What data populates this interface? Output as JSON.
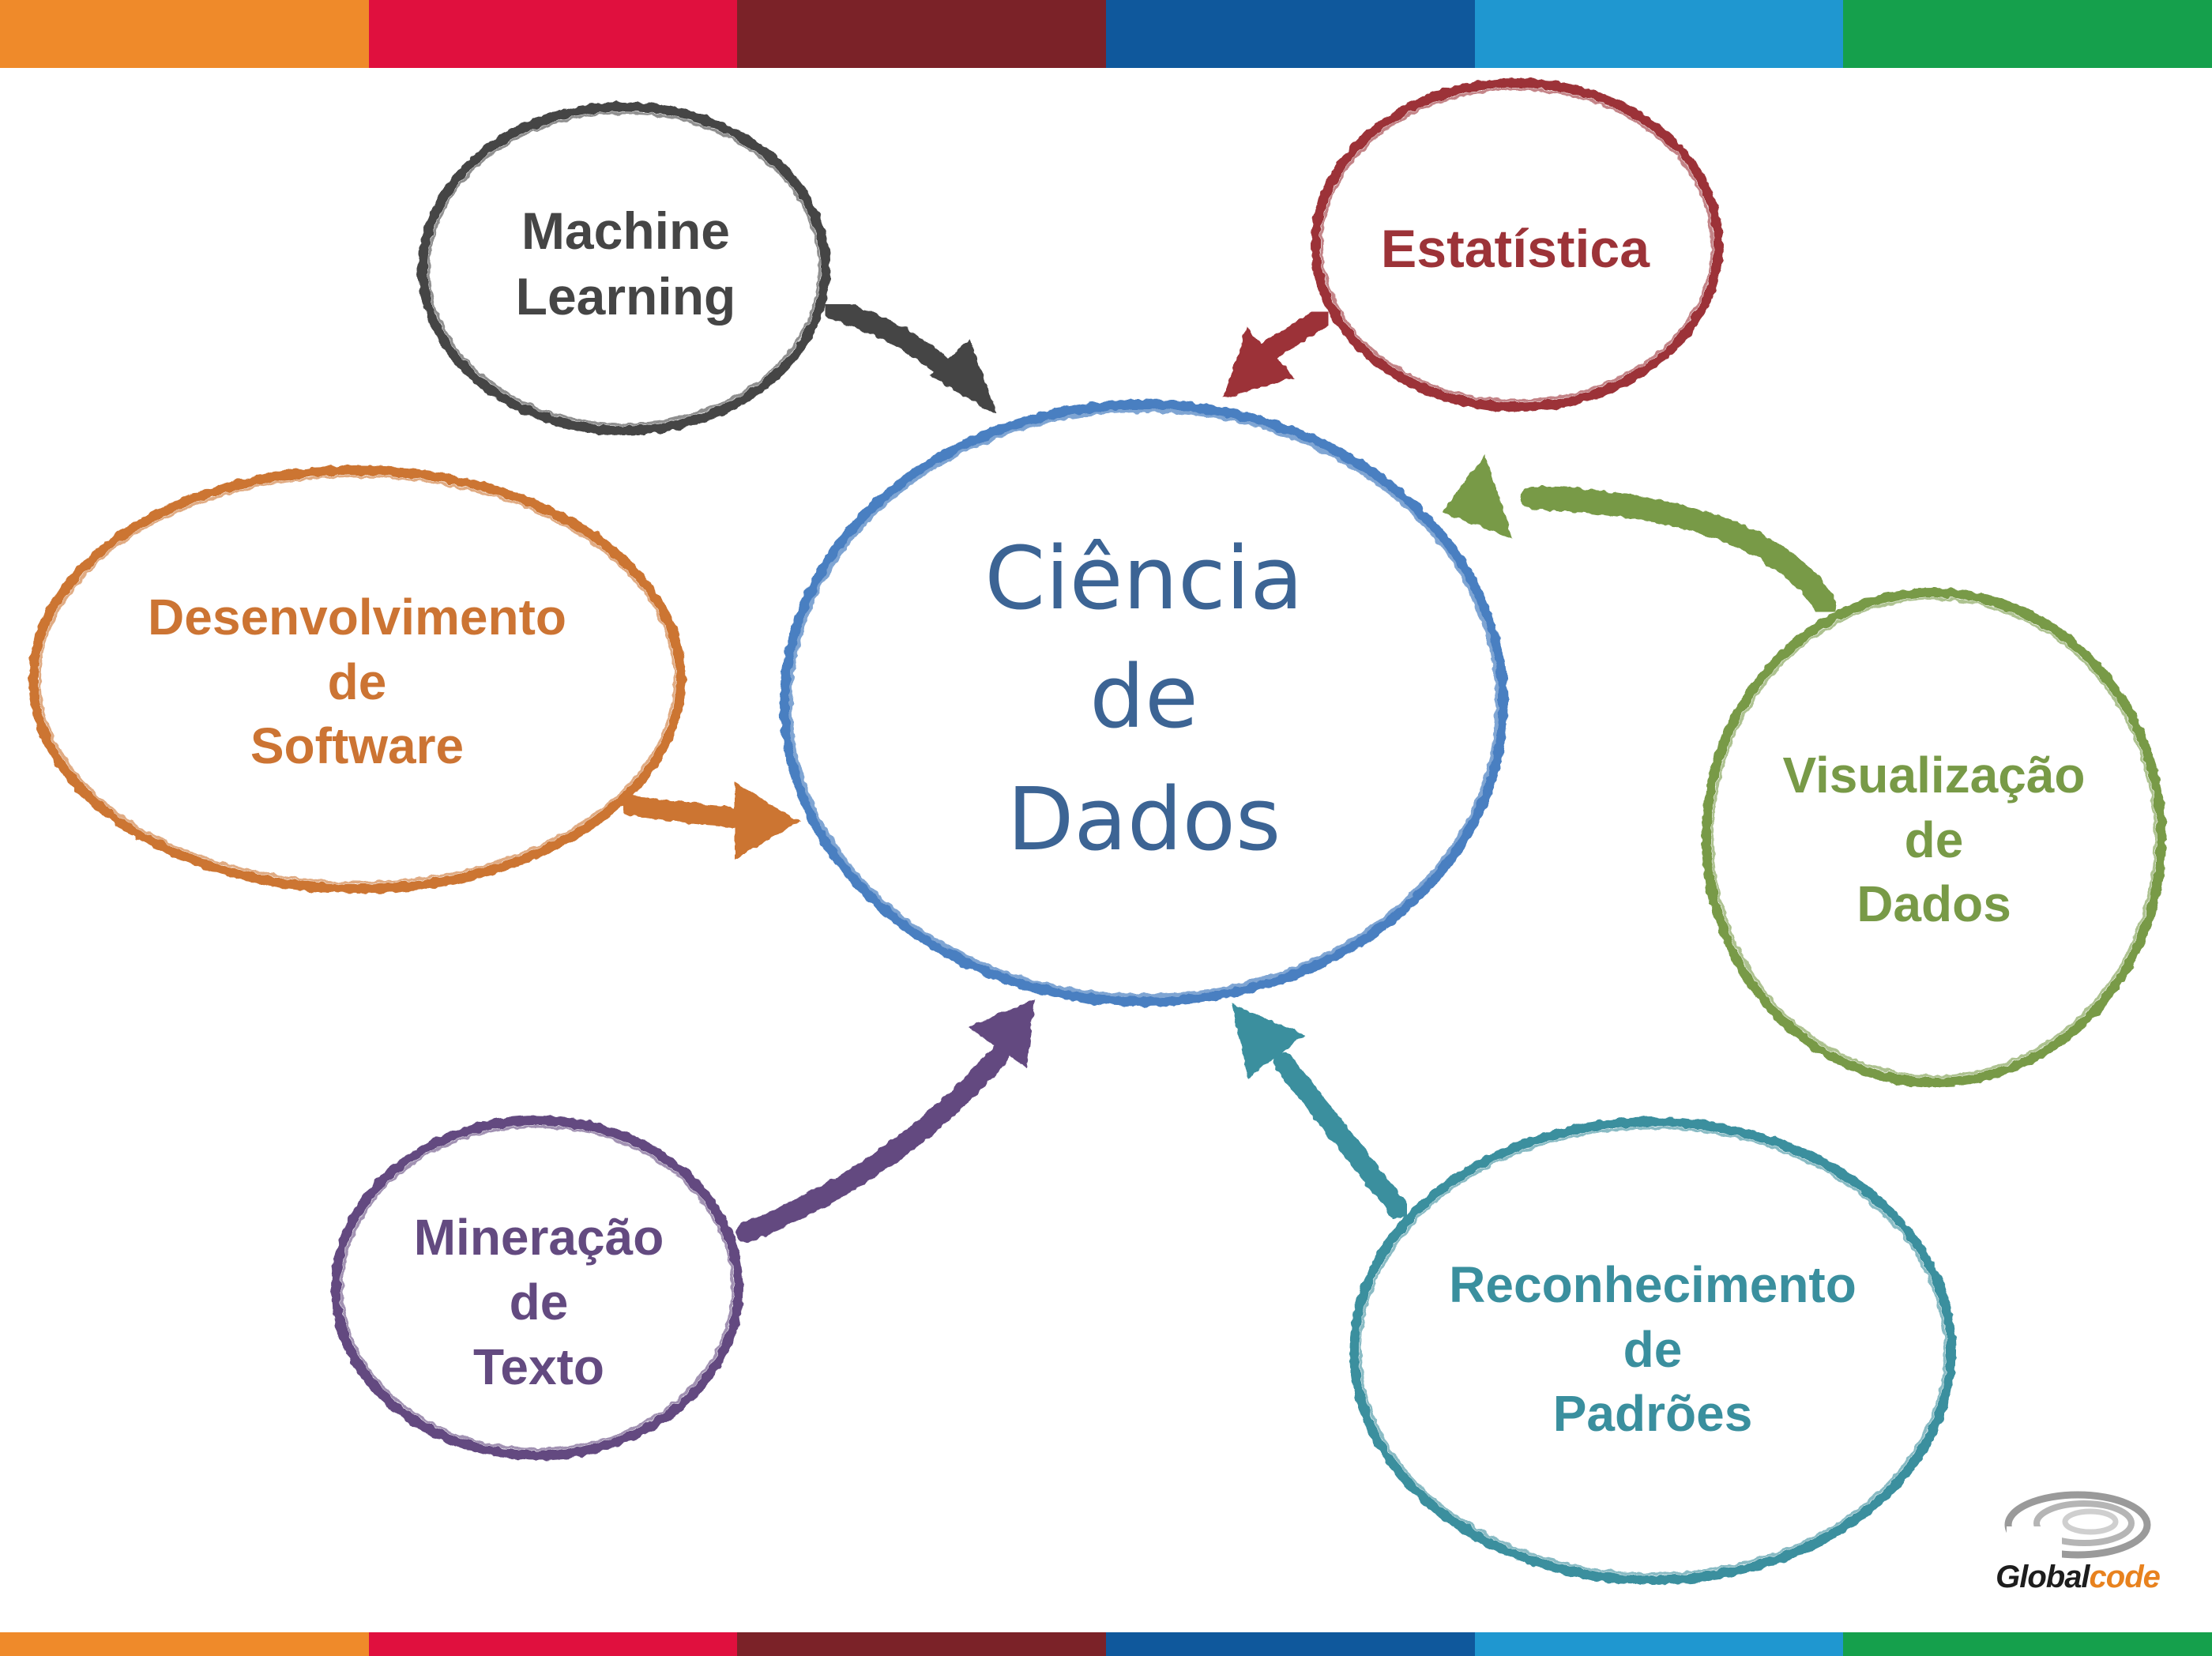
{
  "colors": {
    "stripes": [
      "#ef8a2a",
      "#e0103e",
      "#7b2228",
      "#0f589c",
      "#1f97d0",
      "#15a04c"
    ],
    "center": "#4a7fc1",
    "center_text": "#3c6494",
    "machine_learning": "#454545",
    "estatistica": "#9c3338",
    "desenvolvimento": "#cc7433",
    "visualizacao": "#789a47",
    "mineracao": "#634a80",
    "reconhecimento": "#3a8f9e"
  },
  "center": {
    "lines": [
      "Ciência",
      "de",
      "Dados"
    ]
  },
  "nodes": {
    "machine_learning": [
      "Machine",
      "Learning"
    ],
    "estatistica": [
      "Estatística"
    ],
    "desenvolvimento": [
      "Desenvolvimento",
      "de",
      "Software"
    ],
    "visualizacao": [
      "Visualização",
      "de",
      "Dados"
    ],
    "mineracao": [
      "Mineração",
      "de",
      "Texto"
    ],
    "reconhecimento": [
      "Reconhecimento",
      "de",
      "Padrões"
    ]
  },
  "logo": {
    "text_part1": "Global",
    "text_part2": "code"
  }
}
